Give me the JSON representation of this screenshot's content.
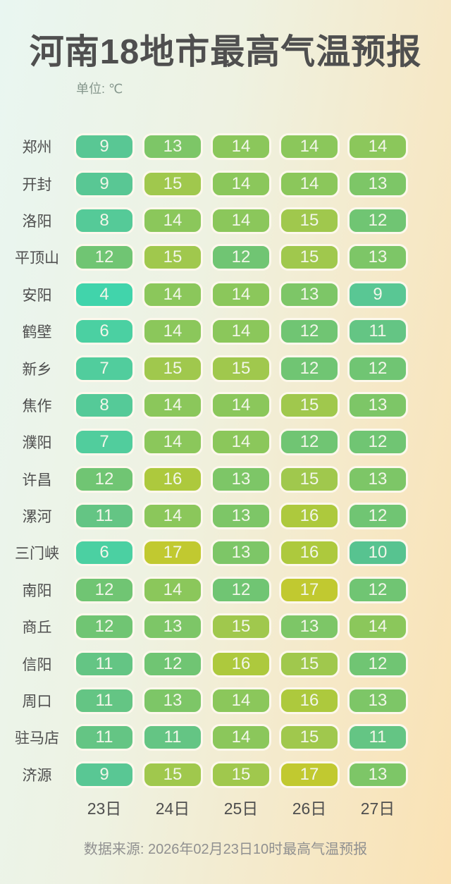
{
  "title": "河南18地市最高气温预报",
  "unit_label": "单位: ℃",
  "source_note": "数据来源: 2026年02月23日10时最高气温预报",
  "chart_data": {
    "type": "heatmap",
    "title": "河南18地市最高气温预报",
    "unit": "℃",
    "columns": [
      "23日",
      "24日",
      "25日",
      "26日",
      "27日"
    ],
    "rows": [
      {
        "city": "郑州",
        "values": [
          9,
          13,
          14,
          14,
          14
        ]
      },
      {
        "city": "开封",
        "values": [
          9,
          15,
          14,
          14,
          13
        ]
      },
      {
        "city": "洛阳",
        "values": [
          8,
          14,
          14,
          15,
          12
        ]
      },
      {
        "city": "平顶山",
        "values": [
          12,
          15,
          12,
          15,
          13
        ]
      },
      {
        "city": "安阳",
        "values": [
          4,
          14,
          14,
          13,
          9
        ]
      },
      {
        "city": "鹤壁",
        "values": [
          6,
          14,
          14,
          12,
          11
        ]
      },
      {
        "city": "新乡",
        "values": [
          7,
          15,
          15,
          12,
          12
        ]
      },
      {
        "city": "焦作",
        "values": [
          8,
          14,
          14,
          15,
          13
        ]
      },
      {
        "city": "濮阳",
        "values": [
          7,
          14,
          14,
          12,
          12
        ]
      },
      {
        "city": "许昌",
        "values": [
          12,
          16,
          13,
          15,
          13
        ]
      },
      {
        "city": "漯河",
        "values": [
          11,
          14,
          13,
          16,
          12
        ]
      },
      {
        "city": "三门峡",
        "values": [
          6,
          17,
          13,
          16,
          10
        ]
      },
      {
        "city": "南阳",
        "values": [
          12,
          14,
          12,
          17,
          12
        ]
      },
      {
        "city": "商丘",
        "values": [
          12,
          13,
          15,
          13,
          14
        ]
      },
      {
        "city": "信阳",
        "values": [
          11,
          12,
          16,
          15,
          12
        ]
      },
      {
        "city": "周口",
        "values": [
          11,
          13,
          14,
          16,
          13
        ]
      },
      {
        "city": "驻马店",
        "values": [
          11,
          11,
          14,
          15,
          11
        ]
      },
      {
        "city": "济源",
        "values": [
          9,
          15,
          15,
          17,
          13
        ]
      }
    ],
    "color_scale": {
      "4": "#41d4ab",
      "6": "#4bd0a2",
      "7": "#51cd9d",
      "8": "#55ca98",
      "9": "#59c794",
      "10": "#57c390",
      "11": "#64c584",
      "12": "#70c573",
      "13": "#7dc667",
      "14": "#8bc75b",
      "15": "#a0c84d",
      "16": "#adc93d",
      "17": "#c1c930"
    },
    "layout": {
      "legend_position": "none",
      "grid": false
    }
  },
  "colors": {
    "title_text": "#4f4f4f",
    "axis_text": "#4e4e4e",
    "unit_text": "#85968c",
    "source_text": "#909090",
    "cell_value_text": "#f2f6e9",
    "cell_border": "#fdf8ec",
    "background_left": "#e9f6f1",
    "background_right": "#fae2b4"
  }
}
